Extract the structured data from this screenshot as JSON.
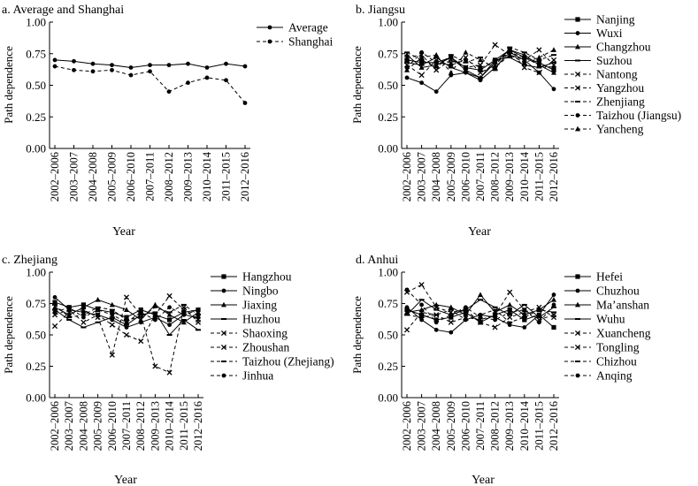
{
  "chart_data": [
    {
      "type": "line",
      "title": "a. Average and Shanghai",
      "ylabel": "Path dependence",
      "xlabel": "Year",
      "ylim": [
        0.0,
        1.0
      ],
      "yticks": [
        "0.00",
        "0.25",
        "0.50",
        "0.75",
        "1.00"
      ],
      "categories": [
        "2002–2006",
        "2003–2007",
        "2004–2008",
        "2005–2009",
        "2006–2010",
        "2007–2011",
        "2008–2012",
        "2009–2013",
        "2010–2014",
        "2011–2015",
        "2012–2016"
      ],
      "series": [
        {
          "name": "Average",
          "style": "solid",
          "marker": "circle",
          "values": [
            0.7,
            0.69,
            0.67,
            0.66,
            0.64,
            0.66,
            0.66,
            0.67,
            0.64,
            0.67,
            0.65
          ]
        },
        {
          "name": "Shanghai",
          "style": "dashed",
          "marker": "circle",
          "values": [
            0.65,
            0.62,
            0.61,
            0.62,
            0.58,
            0.61,
            0.45,
            0.52,
            0.56,
            0.54,
            0.36
          ]
        }
      ]
    },
    {
      "type": "line",
      "title": "b. Jiangsu",
      "ylabel": "Path dependence",
      "xlabel": "Year",
      "ylim": [
        0.0,
        1.0
      ],
      "yticks": [
        "0.00",
        "0.25",
        "0.50",
        "0.75",
        "1.00"
      ],
      "categories": [
        "2002–2006",
        "2003–2007",
        "2004–2008",
        "2005–2009",
        "2006–2010",
        "2007–2011",
        "2008–2012",
        "2009–2013",
        "2010–2014",
        "2011–2015",
        "2012–2016"
      ],
      "series": [
        {
          "name": "Nanjing",
          "style": "solid",
          "marker": "square",
          "values": [
            0.7,
            0.68,
            0.68,
            0.72,
            0.64,
            0.62,
            0.7,
            0.78,
            0.72,
            0.68,
            0.62
          ]
        },
        {
          "name": "Wuxi",
          "style": "solid",
          "marker": "circle",
          "values": [
            0.56,
            0.52,
            0.45,
            0.58,
            0.6,
            0.54,
            0.64,
            0.76,
            0.7,
            0.6,
            0.47
          ]
        },
        {
          "name": "Changzhou",
          "style": "solid",
          "marker": "triangle",
          "values": [
            0.74,
            0.64,
            0.66,
            0.72,
            0.62,
            0.56,
            0.68,
            0.78,
            0.74,
            0.66,
            0.6
          ]
        },
        {
          "name": "Suzhou",
          "style": "solid",
          "marker": "dash",
          "values": [
            0.68,
            0.66,
            0.72,
            0.64,
            0.6,
            0.56,
            0.7,
            0.72,
            0.66,
            0.64,
            0.68
          ]
        },
        {
          "name": "Nantong",
          "style": "dashed",
          "marker": "x",
          "values": [
            0.66,
            0.58,
            0.7,
            0.68,
            0.72,
            0.6,
            0.66,
            0.78,
            0.64,
            0.6,
            0.7
          ]
        },
        {
          "name": "Yangzhou",
          "style": "dashed",
          "marker": "x",
          "values": [
            0.72,
            0.74,
            0.62,
            0.7,
            0.64,
            0.66,
            0.82,
            0.74,
            0.7,
            0.78,
            0.66
          ]
        },
        {
          "name": "Zhenjiang",
          "style": "dashed",
          "marker": "dash",
          "values": [
            0.76,
            0.7,
            0.64,
            0.74,
            0.68,
            0.72,
            0.62,
            0.8,
            0.76,
            0.7,
            0.74
          ]
        },
        {
          "name": "Taizhou (Jiangsu)",
          "style": "dashed",
          "marker": "circle",
          "values": [
            0.64,
            0.76,
            0.68,
            0.66,
            0.7,
            0.64,
            0.68,
            0.76,
            0.72,
            0.66,
            0.64
          ]
        },
        {
          "name": "Yancheng",
          "style": "dashed",
          "marker": "triangle",
          "values": [
            0.62,
            0.72,
            0.74,
            0.6,
            0.76,
            0.7,
            0.64,
            0.74,
            0.68,
            0.72,
            0.78
          ]
        }
      ]
    },
    {
      "type": "line",
      "title": "c. Zhejiang",
      "ylabel": "Path dependence",
      "xlabel": "Year",
      "ylim": [
        0.0,
        1.0
      ],
      "yticks": [
        "0.00",
        "0.25",
        "0.50",
        "0.75",
        "1.00"
      ],
      "categories": [
        "2002–2006",
        "2003–2007",
        "2004–2008",
        "2005–2009",
        "2006–2010",
        "2007–2011",
        "2008–2012",
        "2009–2013",
        "2010–2014",
        "2011–2015",
        "2012–2016"
      ],
      "series": [
        {
          "name": "Hangzhou",
          "style": "solid",
          "marker": "square",
          "values": [
            0.76,
            0.72,
            0.74,
            0.7,
            0.68,
            0.64,
            0.7,
            0.66,
            0.62,
            0.68,
            0.7
          ]
        },
        {
          "name": "Ningbo",
          "style": "solid",
          "marker": "circle",
          "values": [
            0.8,
            0.7,
            0.68,
            0.66,
            0.62,
            0.56,
            0.6,
            0.64,
            0.58,
            0.66,
            0.64
          ]
        },
        {
          "name": "Jiaxing",
          "style": "solid",
          "marker": "triangle",
          "values": [
            0.72,
            0.66,
            0.72,
            0.78,
            0.74,
            0.7,
            0.62,
            0.74,
            0.66,
            0.6,
            0.68
          ]
        },
        {
          "name": "Huzhou",
          "style": "solid",
          "marker": "dash",
          "values": [
            0.7,
            0.62,
            0.56,
            0.6,
            0.64,
            0.58,
            0.66,
            0.68,
            0.5,
            0.62,
            0.54
          ]
        },
        {
          "name": "Shaoxing",
          "style": "dashed",
          "marker": "x",
          "values": [
            0.57,
            0.68,
            0.7,
            0.64,
            0.34,
            0.8,
            0.66,
            0.25,
            0.2,
            0.72,
            0.6
          ]
        },
        {
          "name": "Zhoushan",
          "style": "dashed",
          "marker": "x",
          "values": [
            0.66,
            0.7,
            0.6,
            0.66,
            0.58,
            0.5,
            0.45,
            0.66,
            0.81,
            0.7,
            0.62
          ]
        },
        {
          "name": "Taizhou (Zhejiang)",
          "style": "dashed",
          "marker": "dash",
          "values": [
            0.74,
            0.64,
            0.66,
            0.72,
            0.7,
            0.62,
            0.64,
            0.72,
            0.68,
            0.74,
            0.66
          ]
        },
        {
          "name": "Jinhua",
          "style": "dashed",
          "marker": "circle",
          "values": [
            0.68,
            0.72,
            0.64,
            0.7,
            0.66,
            0.6,
            0.68,
            0.62,
            0.72,
            0.66,
            0.7
          ]
        }
      ]
    },
    {
      "type": "line",
      "title": "d. Anhui",
      "ylabel": "Path dependence",
      "xlabel": "Year",
      "ylim": [
        0.0,
        1.0
      ],
      "yticks": [
        "0.00",
        "0.25",
        "0.50",
        "0.75",
        "1.00"
      ],
      "categories": [
        "2002–2006",
        "2003–2007",
        "2004–2008",
        "2005–2009",
        "2006–2010",
        "2007–2011",
        "2008–2012",
        "2009–2013",
        "2010–2014",
        "2011–2015",
        "2012–2016"
      ],
      "series": [
        {
          "name": "Hefei",
          "style": "solid",
          "marker": "square",
          "values": [
            0.7,
            0.66,
            0.62,
            0.64,
            0.68,
            0.6,
            0.66,
            0.7,
            0.62,
            0.66,
            0.56
          ]
        },
        {
          "name": "Chuzhou",
          "style": "solid",
          "marker": "circle",
          "values": [
            0.72,
            0.62,
            0.54,
            0.52,
            0.62,
            0.66,
            0.64,
            0.58,
            0.56,
            0.66,
            0.82
          ]
        },
        {
          "name": "Ma’anshan",
          "style": "solid",
          "marker": "triangle",
          "values": [
            0.68,
            0.7,
            0.74,
            0.72,
            0.66,
            0.82,
            0.68,
            0.74,
            0.66,
            0.7,
            0.78
          ]
        },
        {
          "name": "Wuhu",
          "style": "solid",
          "marker": "dash",
          "values": [
            0.66,
            0.78,
            0.7,
            0.66,
            0.7,
            0.78,
            0.72,
            0.66,
            0.74,
            0.64,
            0.72
          ]
        },
        {
          "name": "Xuancheng",
          "style": "dashed",
          "marker": "x",
          "values": [
            0.54,
            0.68,
            0.66,
            0.6,
            0.64,
            0.62,
            0.66,
            0.84,
            0.7,
            0.62,
            0.66
          ]
        },
        {
          "name": "Tongling",
          "style": "dashed",
          "marker": "x",
          "values": [
            0.84,
            0.9,
            0.72,
            0.68,
            0.7,
            0.6,
            0.56,
            0.64,
            0.68,
            0.72,
            0.64
          ]
        },
        {
          "name": "Chizhou",
          "style": "dashed",
          "marker": "dash",
          "values": [
            0.66,
            0.64,
            0.66,
            0.7,
            0.62,
            0.66,
            0.7,
            0.6,
            0.64,
            0.7,
            0.68
          ]
        },
        {
          "name": "Anqing",
          "style": "dashed",
          "marker": "circle",
          "values": [
            0.86,
            0.74,
            0.6,
            0.66,
            0.72,
            0.64,
            0.62,
            0.68,
            0.7,
            0.6,
            0.74
          ]
        }
      ]
    }
  ]
}
